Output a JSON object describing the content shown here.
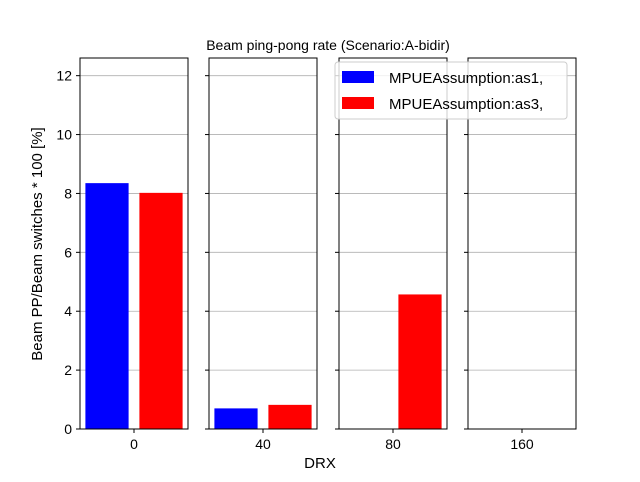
{
  "chart_data": {
    "type": "bar",
    "title": "Beam ping-pong rate (Scenario:A-bidir)",
    "xlabel": "DRX",
    "ylabel": "Beam PP/Beam switches * 100 [%]",
    "ylim": [
      0,
      12.6
    ],
    "yticks": [
      0,
      2,
      4,
      6,
      8,
      10,
      12
    ],
    "grid": true,
    "legend_position": "top-right",
    "categories": [
      "0",
      "40",
      "80",
      "160"
    ],
    "series": [
      {
        "name": "MPUEAssumption:as1,",
        "color": "#0000ff",
        "values": [
          8.35,
          0.7,
          0,
          0
        ]
      },
      {
        "name": "MPUEAssumption:as3,",
        "color": "#ff0000",
        "values": [
          8.02,
          0.82,
          4.57,
          0
        ]
      }
    ]
  }
}
